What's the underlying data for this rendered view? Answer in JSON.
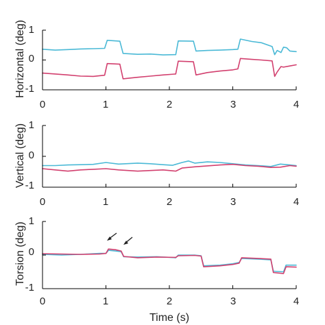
{
  "colors": {
    "cyan": "#4ab9d6",
    "magenta": "#d23f6e",
    "axis": "#000000",
    "arrow": "#222222"
  },
  "chart_data": [
    {
      "type": "line",
      "ylabel": "Horizontal (deg)",
      "xlabel": "",
      "xlim": [
        0,
        4
      ],
      "ylim": [
        -1,
        1
      ],
      "x_ticks": [
        "0",
        "1",
        "2",
        "3",
        "4"
      ],
      "y_ticks": [
        "-1",
        "0",
        "1"
      ],
      "grid": false,
      "series": [
        {
          "color": "#4ab9d6",
          "points": [
            [
              0,
              0.36
            ],
            [
              0.2,
              0.33
            ],
            [
              0.4,
              0.35
            ],
            [
              0.6,
              0.37
            ],
            [
              0.8,
              0.38
            ],
            [
              0.98,
              0.39
            ],
            [
              1.02,
              0.66
            ],
            [
              1.22,
              0.63
            ],
            [
              1.27,
              0.22
            ],
            [
              1.5,
              0.19
            ],
            [
              1.7,
              0.2
            ],
            [
              1.9,
              0.17
            ],
            [
              2.1,
              0.18
            ],
            [
              2.14,
              0.64
            ],
            [
              2.38,
              0.63
            ],
            [
              2.42,
              0.3
            ],
            [
              2.6,
              0.32
            ],
            [
              2.8,
              0.33
            ],
            [
              3.0,
              0.35
            ],
            [
              3.08,
              0.36
            ],
            [
              3.12,
              0.7
            ],
            [
              3.3,
              0.62
            ],
            [
              3.45,
              0.58
            ],
            [
              3.62,
              0.45
            ],
            [
              3.66,
              0.18
            ],
            [
              3.7,
              0.32
            ],
            [
              3.76,
              0.25
            ],
            [
              3.8,
              0.43
            ],
            [
              3.85,
              0.41
            ],
            [
              3.9,
              0.3
            ],
            [
              4.0,
              0.28
            ]
          ]
        },
        {
          "color": "#d23f6e",
          "points": [
            [
              0,
              -0.44
            ],
            [
              0.2,
              -0.47
            ],
            [
              0.4,
              -0.5
            ],
            [
              0.6,
              -0.54
            ],
            [
              0.8,
              -0.55
            ],
            [
              0.98,
              -0.51
            ],
            [
              1.02,
              -0.12
            ],
            [
              1.22,
              -0.14
            ],
            [
              1.27,
              -0.63
            ],
            [
              1.5,
              -0.58
            ],
            [
              1.7,
              -0.54
            ],
            [
              1.9,
              -0.5
            ],
            [
              2.1,
              -0.47
            ],
            [
              2.14,
              -0.04
            ],
            [
              2.38,
              -0.06
            ],
            [
              2.42,
              -0.5
            ],
            [
              2.6,
              -0.42
            ],
            [
              2.8,
              -0.37
            ],
            [
              3.0,
              -0.33
            ],
            [
              3.08,
              -0.3
            ],
            [
              3.12,
              0.05
            ],
            [
              3.3,
              0.02
            ],
            [
              3.45,
              0.0
            ],
            [
              3.62,
              -0.03
            ],
            [
              3.66,
              -0.55
            ],
            [
              3.7,
              -0.4
            ],
            [
              3.76,
              -0.22
            ],
            [
              3.8,
              -0.24
            ],
            [
              3.9,
              -0.2
            ],
            [
              4.0,
              -0.16
            ]
          ]
        }
      ]
    },
    {
      "type": "line",
      "ylabel": "Vertical (deg)",
      "xlabel": "",
      "xlim": [
        0,
        4
      ],
      "ylim": [
        -1,
        1
      ],
      "x_ticks": [
        "0",
        "1",
        "2",
        "3",
        "4"
      ],
      "y_ticks": [
        "-1",
        "0",
        "1"
      ],
      "grid": false,
      "series": [
        {
          "color": "#4ab9d6",
          "points": [
            [
              0,
              -0.3
            ],
            [
              0.2,
              -0.3
            ],
            [
              0.4,
              -0.28
            ],
            [
              0.6,
              -0.27
            ],
            [
              0.8,
              -0.26
            ],
            [
              1.0,
              -0.2
            ],
            [
              1.2,
              -0.25
            ],
            [
              1.5,
              -0.22
            ],
            [
              1.7,
              -0.24
            ],
            [
              1.9,
              -0.27
            ],
            [
              2.05,
              -0.29
            ],
            [
              2.2,
              -0.2
            ],
            [
              2.3,
              -0.15
            ],
            [
              2.4,
              -0.22
            ],
            [
              2.6,
              -0.18
            ],
            [
              2.8,
              -0.2
            ],
            [
              3.0,
              -0.24
            ],
            [
              3.2,
              -0.28
            ],
            [
              3.4,
              -0.3
            ],
            [
              3.6,
              -0.33
            ],
            [
              3.75,
              -0.25
            ],
            [
              3.9,
              -0.28
            ],
            [
              4.0,
              -0.3
            ]
          ]
        },
        {
          "color": "#d23f6e",
          "points": [
            [
              0,
              -0.4
            ],
            [
              0.2,
              -0.44
            ],
            [
              0.4,
              -0.48
            ],
            [
              0.6,
              -0.44
            ],
            [
              0.8,
              -0.42
            ],
            [
              1.0,
              -0.4
            ],
            [
              1.2,
              -0.44
            ],
            [
              1.5,
              -0.48
            ],
            [
              1.7,
              -0.46
            ],
            [
              1.9,
              -0.44
            ],
            [
              2.1,
              -0.48
            ],
            [
              2.2,
              -0.38
            ],
            [
              2.4,
              -0.34
            ],
            [
              2.6,
              -0.31
            ],
            [
              2.8,
              -0.28
            ],
            [
              3.0,
              -0.26
            ],
            [
              3.2,
              -0.3
            ],
            [
              3.4,
              -0.32
            ],
            [
              3.6,
              -0.36
            ],
            [
              3.75,
              -0.35
            ],
            [
              3.9,
              -0.3
            ],
            [
              4.0,
              -0.32
            ]
          ]
        }
      ]
    },
    {
      "type": "line",
      "ylabel": "Torsion (deg)",
      "xlabel": "Time (s)",
      "xlim": [
        0,
        4
      ],
      "ylim": [
        -1,
        1
      ],
      "x_ticks": [
        "0",
        "1",
        "2",
        "3",
        "4"
      ],
      "y_ticks": [
        "-1",
        "0",
        "1"
      ],
      "grid": false,
      "annotations": [
        "arrow",
        "arrow"
      ],
      "series": [
        {
          "color": "#4ab9d6",
          "points": [
            [
              0,
              0.02
            ],
            [
              0.3,
              0.0
            ],
            [
              0.6,
              0.02
            ],
            [
              0.9,
              0.05
            ],
            [
              1.0,
              0.05
            ],
            [
              1.04,
              0.14
            ],
            [
              1.15,
              0.12
            ],
            [
              1.24,
              0.1
            ],
            [
              1.28,
              -0.05
            ],
            [
              1.5,
              -0.06
            ],
            [
              1.8,
              -0.05
            ],
            [
              2.1,
              -0.08
            ],
            [
              2.14,
              0.0
            ],
            [
              2.4,
              0.0
            ],
            [
              2.5,
              -0.02
            ],
            [
              2.54,
              -0.32
            ],
            [
              2.8,
              -0.3
            ],
            [
              3.0,
              -0.26
            ],
            [
              3.1,
              -0.22
            ],
            [
              3.14,
              -0.1
            ],
            [
              3.4,
              -0.12
            ],
            [
              3.6,
              -0.14
            ],
            [
              3.64,
              -0.48
            ],
            [
              3.8,
              -0.5
            ],
            [
              3.84,
              -0.3
            ],
            [
              4.0,
              -0.3
            ]
          ]
        },
        {
          "color": "#d23f6e",
          "points": [
            [
              0,
              0.04
            ],
            [
              0.3,
              0.03
            ],
            [
              0.6,
              0.02
            ],
            [
              0.9,
              0.03
            ],
            [
              1.0,
              0.05
            ],
            [
              1.04,
              0.18
            ],
            [
              1.15,
              0.16
            ],
            [
              1.24,
              0.12
            ],
            [
              1.28,
              -0.04
            ],
            [
              1.5,
              -0.08
            ],
            [
              1.8,
              -0.06
            ],
            [
              2.1,
              -0.07
            ],
            [
              2.14,
              -0.02
            ],
            [
              2.4,
              -0.01
            ],
            [
              2.5,
              -0.03
            ],
            [
              2.54,
              -0.35
            ],
            [
              2.8,
              -0.32
            ],
            [
              3.0,
              -0.28
            ],
            [
              3.1,
              -0.24
            ],
            [
              3.14,
              -0.08
            ],
            [
              3.4,
              -0.1
            ],
            [
              3.6,
              -0.12
            ],
            [
              3.64,
              -0.52
            ],
            [
              3.8,
              -0.55
            ],
            [
              3.84,
              -0.35
            ],
            [
              4.0,
              -0.36
            ]
          ]
        }
      ]
    }
  ]
}
